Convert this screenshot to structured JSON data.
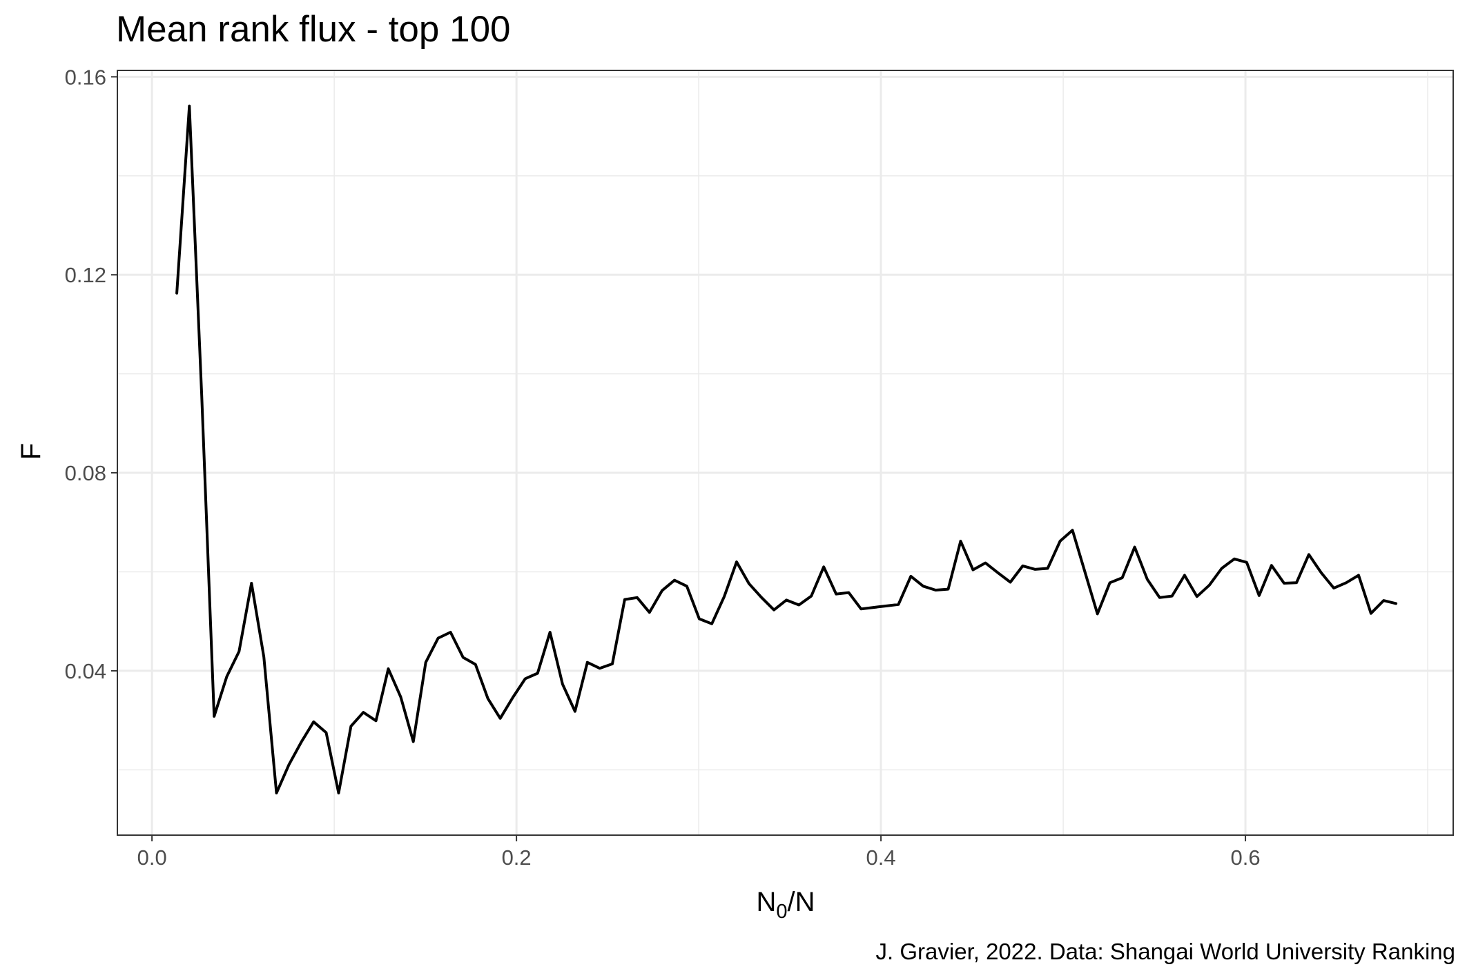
{
  "chart_data": {
    "type": "line",
    "title": "Mean rank flux - top 100",
    "xlabel_main": "N",
    "xlabel_sub": "0",
    "xlabel_tail": "/N",
    "ylabel": "F",
    "caption": "J. Gravier, 2022. Data: Shangai World University Ranking",
    "xlim": [
      -0.019,
      0.714
    ],
    "ylim": [
      0.0068,
      0.1613
    ],
    "x_ticks": [
      0.0,
      0.2,
      0.4,
      0.6
    ],
    "x_tick_labels": [
      "0.0",
      "0.2",
      "0.4",
      "0.6"
    ],
    "y_ticks": [
      0.04,
      0.08,
      0.12,
      0.16
    ],
    "y_tick_labels": [
      "0.04",
      "0.08",
      "0.12",
      "0.16"
    ],
    "x_minor": [
      0.1,
      0.3,
      0.5,
      0.7
    ],
    "y_minor": [
      0.02,
      0.06,
      0.1,
      0.14
    ],
    "grid": true,
    "legend": "none",
    "line_color": "#000000",
    "x": [
      0.0136,
      0.0205,
      0.0273,
      0.0341,
      0.041,
      0.0478,
      0.0546,
      0.0614,
      0.0683,
      0.0751,
      0.0819,
      0.0887,
      0.0956,
      0.1024,
      0.1092,
      0.116,
      0.1229,
      0.1297,
      0.1365,
      0.1434,
      0.1502,
      0.157,
      0.1638,
      0.1707,
      0.1775,
      0.1843,
      0.1911,
      0.198,
      0.2048,
      0.2116,
      0.2184,
      0.2253,
      0.2321,
      0.2389,
      0.2457,
      0.2526,
      0.2594,
      0.2662,
      0.273,
      0.2799,
      0.2867,
      0.2935,
      0.3003,
      0.3072,
      0.314,
      0.3208,
      0.3276,
      0.3345,
      0.3413,
      0.3481,
      0.355,
      0.3618,
      0.3686,
      0.3754,
      0.3823,
      0.3891,
      0.3959,
      0.4027,
      0.4096,
      0.4164,
      0.4232,
      0.43,
      0.4369,
      0.4437,
      0.4505,
      0.4573,
      0.4642,
      0.471,
      0.4778,
      0.4846,
      0.4915,
      0.4983,
      0.5051,
      0.5119,
      0.5188,
      0.5256,
      0.5324,
      0.5392,
      0.5461,
      0.5529,
      0.5597,
      0.5666,
      0.5734,
      0.5802,
      0.587,
      0.5939,
      0.6007,
      0.6075,
      0.6143,
      0.6212,
      0.628,
      0.6348,
      0.6416,
      0.6485,
      0.6553,
      0.6621,
      0.6689,
      0.6758,
      0.6826
    ],
    "values": [
      0.1163,
      0.1541,
      0.0956,
      0.0308,
      0.0388,
      0.0439,
      0.0577,
      0.0428,
      0.0153,
      0.021,
      0.0256,
      0.0297,
      0.0275,
      0.0153,
      0.0288,
      0.0316,
      0.0299,
      0.0404,
      0.0347,
      0.0257,
      0.0417,
      0.0466,
      0.0478,
      0.0427,
      0.0413,
      0.0344,
      0.0304,
      0.0346,
      0.0384,
      0.0395,
      0.0478,
      0.0373,
      0.0318,
      0.0417,
      0.0405,
      0.0414,
      0.0544,
      0.0548,
      0.0518,
      0.0562,
      0.0583,
      0.0571,
      0.0505,
      0.0495,
      0.055,
      0.062,
      0.0576,
      0.0548,
      0.0523,
      0.0543,
      0.0533,
      0.0551,
      0.061,
      0.0555,
      0.0558,
      0.0525,
      0.0528,
      0.0531,
      0.0534,
      0.0591,
      0.0571,
      0.0563,
      0.0565,
      0.0662,
      0.0604,
      0.0618,
      0.0598,
      0.0579,
      0.0612,
      0.0605,
      0.0607,
      0.0662,
      0.0684,
      0.06,
      0.0515,
      0.0578,
      0.0588,
      0.065,
      0.0585,
      0.0548,
      0.0551,
      0.0593,
      0.055,
      0.0573,
      0.0607,
      0.0626,
      0.0619,
      0.0552,
      0.0613,
      0.0577,
      0.0578,
      0.0635,
      0.0598,
      0.0567,
      0.0578,
      0.0593,
      0.0516,
      0.0542,
      0.0536
    ]
  }
}
